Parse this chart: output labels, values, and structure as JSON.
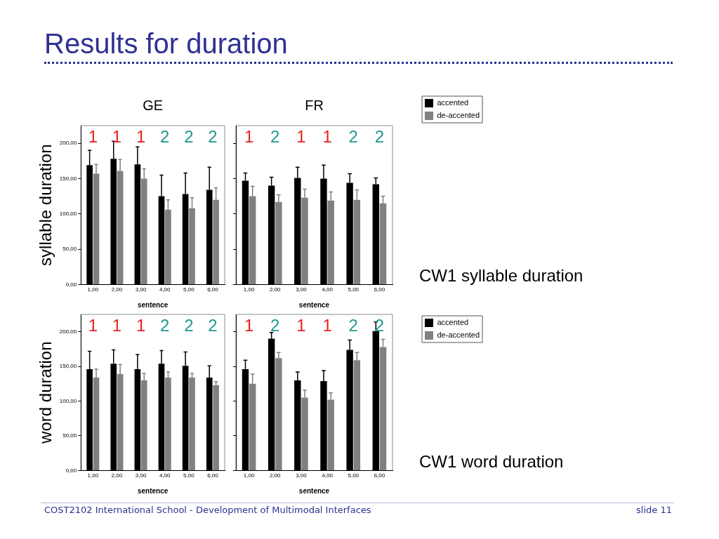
{
  "chart_data": [
    {
      "type": "other",
      "title": "Results for duration",
      "annotations": [
        "COST2102 International School - Development of Multimodal Interfaces",
        "slide 11"
      ]
    },
    {
      "type": "bar",
      "title": "GE",
      "xlabel": "sentence",
      "ylabel": "syllable duration",
      "categories": [
        "1,00",
        "2,00",
        "3,00",
        "4,00",
        "5,00",
        "6,00"
      ],
      "series": [
        {
          "color": "#000000",
          "values": [
            169,
            178,
            170,
            125,
            128,
            134
          ],
          "errors": [
            [
              169,
              190
            ],
            [
              178,
              203
            ],
            [
              170,
              195
            ],
            [
              125,
              155
            ],
            [
              128,
              158
            ],
            [
              134,
              166
            ]
          ]
        },
        {
          "color": "#808080",
          "values": [
            157,
            161,
            150,
            106,
            108,
            120
          ],
          "errors": [
            [
              157,
              170
            ],
            [
              161,
              177
            ],
            [
              150,
              164
            ],
            [
              106,
              120
            ],
            [
              108,
              123
            ],
            [
              120,
              137
            ]
          ]
        }
      ],
      "ylim": [
        0,
        225
      ],
      "yticks": [
        {
          "value": 0,
          "label": "0,00"
        },
        {
          "value": 50,
          "label": "50,00"
        },
        {
          "value": 100,
          "label": "100,00"
        },
        {
          "value": 150,
          "label": "150,00"
        },
        {
          "value": 200,
          "label": "200,00"
        }
      ],
      "annotations": [
        "1",
        "1",
        "1",
        "2",
        "2",
        "2"
      ]
    },
    {
      "type": "bar",
      "title": "FR",
      "xlabel": "sentence",
      "categories": [
        "1,00",
        "2,00",
        "3,00",
        "4,00",
        "5,00",
        "6,00"
      ],
      "series": [
        {
          "name": "accented",
          "color": "#000000",
          "values": [
            147,
            140,
            151,
            150,
            144,
            142
          ],
          "errors": [
            [
              147,
              158
            ],
            [
              140,
              152
            ],
            [
              151,
              166
            ],
            [
              150,
              169
            ],
            [
              144,
              157
            ],
            [
              142,
              151
            ]
          ]
        },
        {
          "name": "de-accented",
          "color": "#808080",
          "values": [
            125,
            117,
            123,
            119,
            120,
            115
          ],
          "errors": [
            [
              125,
              139
            ],
            [
              117,
              127
            ],
            [
              123,
              135
            ],
            [
              119,
              131
            ],
            [
              120,
              134
            ],
            [
              115,
              125
            ]
          ]
        }
      ],
      "ylim": [
        0,
        225
      ],
      "yticks": [
        {
          "value": 0,
          "label": null
        },
        {
          "value": 50,
          "label": null
        },
        {
          "value": 100,
          "label": null
        },
        {
          "value": 150,
          "label": null
        },
        {
          "value": 200,
          "label": null
        }
      ],
      "tick_labels": "x",
      "legend": "top right",
      "annotations": [
        "1",
        "2",
        "1",
        "1",
        "2",
        "2",
        "CW1 syllable duration"
      ]
    },
    {
      "type": "bar",
      "xlabel": "sentence",
      "ylabel": "word duration",
      "categories": [
        "1,00",
        "2,00",
        "3,00",
        "4,00",
        "5,00",
        "6,00"
      ],
      "series": [
        {
          "color": "#000000",
          "values": [
            146,
            154,
            146,
            154,
            151,
            134
          ],
          "errors": [
            [
              146,
              172
            ],
            [
              154,
              174
            ],
            [
              146,
              167
            ],
            [
              154,
              173
            ],
            [
              151,
              171
            ],
            [
              134,
              151
            ]
          ]
        },
        {
          "color": "#808080",
          "values": [
            134,
            139,
            130,
            134,
            134,
            123
          ],
          "errors": [
            [
              134,
              146
            ],
            [
              139,
              153
            ],
            [
              130,
              140
            ],
            [
              134,
              142
            ],
            [
              134,
              140
            ],
            [
              123,
              128
            ]
          ]
        }
      ],
      "ylim": [
        0,
        225
      ],
      "yticks": [
        {
          "value": 0,
          "label": "0,00"
        },
        {
          "value": 50,
          "label": "50,00"
        },
        {
          "value": 100,
          "label": "100,00"
        },
        {
          "value": 150,
          "label": "150,00"
        },
        {
          "value": 200,
          "label": "200,00"
        }
      ],
      "annotations": [
        "1",
        "1",
        "1",
        "2",
        "2",
        "2"
      ]
    },
    {
      "type": "bar",
      "xlabel": "sentence",
      "categories": [
        "1,00",
        "2,00",
        "3,00",
        "4,00",
        "5,00",
        "6,00"
      ],
      "series": [
        {
          "name": "accented",
          "color": "#000000",
          "values": [
            146,
            190,
            130,
            129,
            174,
            201
          ],
          "errors": [
            [
              146,
              159
            ],
            [
              190,
              199
            ],
            [
              130,
              142
            ],
            [
              129,
              144
            ],
            [
              174,
              188
            ],
            [
              201,
              214
            ]
          ]
        },
        {
          "name": "de-accented",
          "color": "#808080",
          "values": [
            125,
            162,
            105,
            102,
            159,
            178
          ],
          "errors": [
            [
              125,
              139
            ],
            [
              162,
              170
            ],
            [
              105,
              116
            ],
            [
              102,
              112
            ],
            [
              159,
              170
            ],
            [
              178,
              189
            ]
          ]
        }
      ],
      "ylim": [
        0,
        225
      ],
      "yticks": [
        {
          "value": 0,
          "label": null
        },
        {
          "value": 50,
          "label": null
        },
        {
          "value": 100,
          "label": null
        },
        {
          "value": 150,
          "label": null
        },
        {
          "value": 200,
          "label": null
        }
      ],
      "tick_labels": "x",
      "legend": "top right",
      "annotations": [
        "1",
        "2",
        "1",
        "1",
        "2",
        "2",
        "CW1 word duration"
      ]
    }
  ]
}
